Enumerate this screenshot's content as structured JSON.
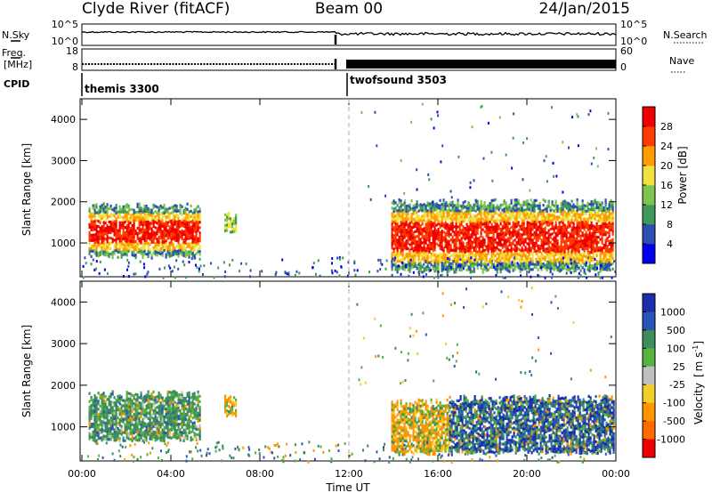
{
  "header": {
    "station": "Clyde River (fitACF)",
    "beam": "Beam 00",
    "date": "24/Jan/2015"
  },
  "nsky_panel": {
    "left_label": "N.Sky",
    "left_ticks": [
      "10^5",
      "10^0"
    ],
    "right_label": "N.Search",
    "right_ticks": [
      "10^5",
      "10^0"
    ]
  },
  "freq_panel": {
    "left_label_1": "Freq.",
    "left_label_2": "[MHz]",
    "left_ticks": [
      "18",
      "8"
    ],
    "right_label": "Nave",
    "right_ticks": [
      "60",
      "0"
    ]
  },
  "cpid_panel": {
    "label": "CPID",
    "modes": [
      "themis 3300",
      "twofsound 3503"
    ]
  },
  "chart_data": [
    {
      "type": "heatmap",
      "name": "power",
      "ylabel": "Slant Range [km]",
      "yticks": [
        "4000",
        "3000",
        "2000",
        "1000"
      ],
      "ylim": [
        180,
        4500
      ],
      "xticks": [
        "00:00",
        "04:00",
        "08:00",
        "12:00",
        "16:00",
        "20:00",
        "00:00"
      ],
      "xlim": [
        0,
        24
      ],
      "dashed_marker_hour": 12,
      "colorbar": {
        "label": "Power [dB]",
        "ticks": [
          "28",
          "24",
          "20",
          "16",
          "12",
          "8",
          "4"
        ],
        "colors": [
          "#0000ee",
          "#2a4fb0",
          "#3f9a5a",
          "#7dc350",
          "#f0e040",
          "#ff9c00",
          "#ff3c00",
          "#ee0000"
        ]
      },
      "echo_regions": [
        {
          "t0": 0.3,
          "t1": 5.3,
          "r0": 700,
          "r1": 1900,
          "intensity": "high"
        },
        {
          "t0": 6.4,
          "t1": 6.9,
          "r0": 1300,
          "r1": 1700,
          "intensity": "medium"
        },
        {
          "t0": 13.9,
          "t1": 23.9,
          "r0": 350,
          "r1": 2000,
          "intensity": "high"
        }
      ]
    },
    {
      "type": "heatmap",
      "name": "velocity",
      "ylabel": "Slant Range [km]",
      "yticks": [
        "4000",
        "3000",
        "2000",
        "1000"
      ],
      "ylim": [
        180,
        4500
      ],
      "xticks": [
        "00:00",
        "04:00",
        "08:00",
        "12:00",
        "16:00",
        "20:00",
        "00:00"
      ],
      "xlim": [
        0,
        24
      ],
      "xlabel": "Time UT",
      "dashed_marker_hour": 12,
      "colorbar": {
        "label": "Velocity",
        "label_unit": "m s",
        "label_exp": "-1",
        "ticks": [
          "1000",
          "500",
          "100",
          "25",
          "-25",
          "-100",
          "-500",
          "-1000"
        ],
        "colors": [
          "#1a2ea8",
          "#2855b8",
          "#3d8c5c",
          "#56b340",
          "#c0c0c0",
          "#f2ce2a",
          "#ff9600",
          "#ff6a00",
          "#ee0000"
        ]
      },
      "echo_regions": [
        {
          "t0": 0.3,
          "t1": 5.3,
          "r0": 700,
          "r1": 1800,
          "dominant": "green"
        },
        {
          "t0": 6.4,
          "t1": 6.9,
          "r0": 1300,
          "r1": 1700,
          "dominant": "orange"
        },
        {
          "t0": 13.9,
          "t1": 16.5,
          "r0": 400,
          "r1": 1600,
          "dominant": "orange"
        },
        {
          "t0": 16.5,
          "t1": 23.9,
          "r0": 400,
          "r1": 1700,
          "dominant": "blue"
        }
      ]
    }
  ]
}
